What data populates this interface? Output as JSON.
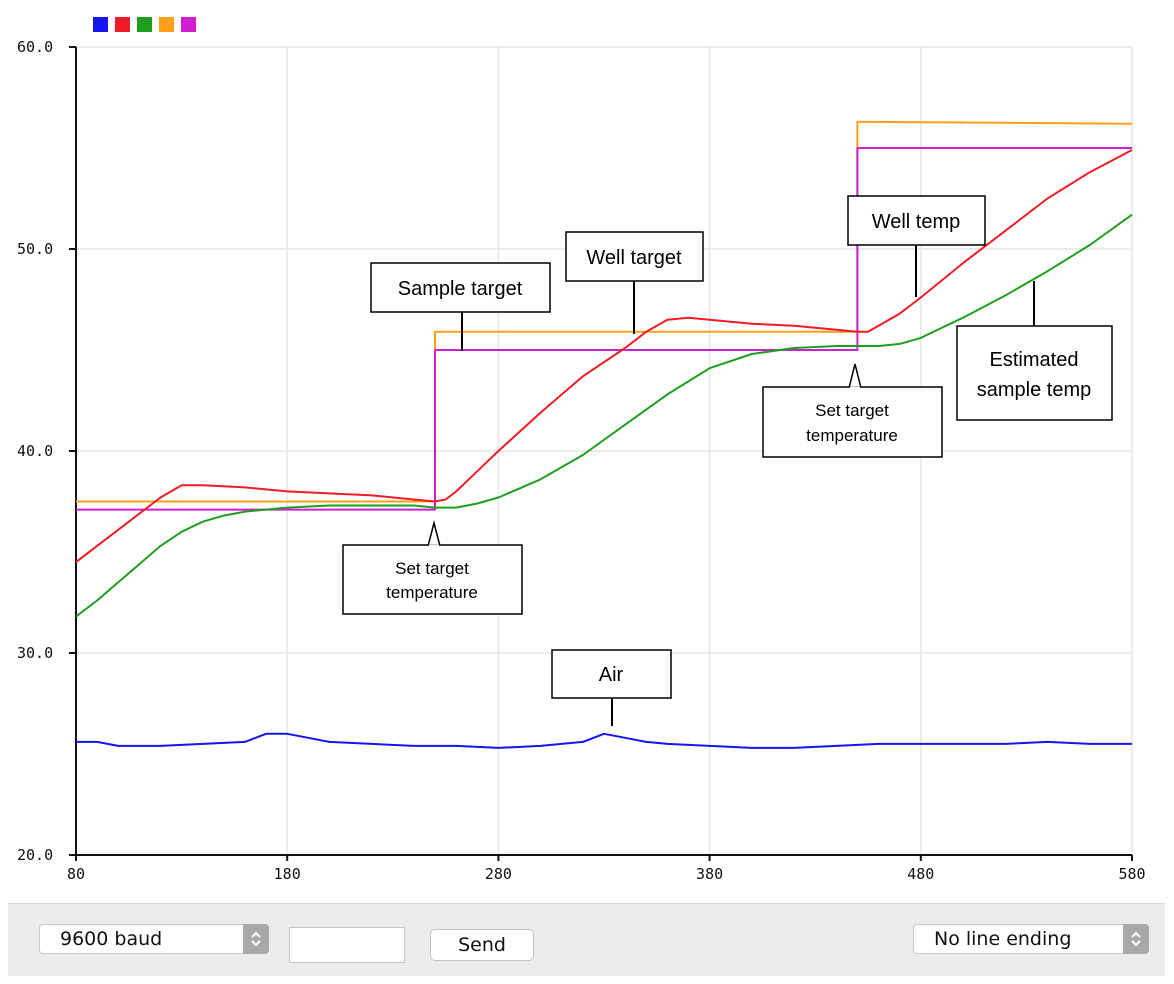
{
  "legend": {
    "swatches": [
      {
        "color": "#1515ef"
      },
      {
        "color": "#ee1c25"
      },
      {
        "color": "#1f9e1f"
      },
      {
        "color": "#ff9f1c"
      },
      {
        "color": "#d01fd0"
      }
    ]
  },
  "chart_data": {
    "type": "line",
    "xlim": [
      80,
      580
    ],
    "ylim": [
      20.0,
      60.0
    ],
    "x_ticks": [
      "80",
      "180",
      "280",
      "380",
      "480",
      "580"
    ],
    "y_ticks": [
      "20.0",
      "30.0",
      "40.0",
      "50.0",
      "60.0"
    ],
    "grid": true,
    "series": [
      {
        "color": "#1515ef",
        "x": [
          80,
          90,
          100,
          120,
          140,
          160,
          170,
          180,
          190,
          200,
          220,
          240,
          260,
          280,
          300,
          320,
          330,
          340,
          350,
          360,
          380,
          400,
          420,
          440,
          460,
          480,
          500,
          520,
          540,
          560,
          580
        ],
        "y": [
          25.6,
          25.6,
          25.4,
          25.4,
          25.5,
          25.6,
          26.0,
          26.0,
          25.8,
          25.6,
          25.5,
          25.4,
          25.4,
          25.3,
          25.4,
          25.6,
          26.0,
          25.8,
          25.6,
          25.5,
          25.4,
          25.3,
          25.3,
          25.4,
          25.5,
          25.5,
          25.5,
          25.5,
          25.6,
          25.5,
          25.5
        ]
      },
      {
        "color": "#ee1c25",
        "x": [
          80,
          90,
          100,
          110,
          120,
          130,
          140,
          160,
          180,
          200,
          220,
          240,
          250,
          255,
          260,
          270,
          280,
          300,
          320,
          340,
          350,
          360,
          370,
          380,
          390,
          400,
          420,
          440,
          450,
          455,
          460,
          470,
          480,
          500,
          520,
          540,
          560,
          580
        ],
        "y": [
          34.5,
          35.3,
          36.1,
          36.9,
          37.7,
          38.3,
          38.3,
          38.2,
          38.0,
          37.9,
          37.8,
          37.6,
          37.5,
          37.6,
          38.0,
          39.0,
          40.0,
          41.9,
          43.7,
          45.1,
          45.9,
          46.5,
          46.6,
          46.5,
          46.4,
          46.3,
          46.2,
          46.0,
          45.9,
          45.9,
          46.2,
          46.8,
          47.6,
          49.3,
          50.9,
          52.5,
          53.8,
          54.9
        ]
      },
      {
        "color": "#1f9e1f",
        "x": [
          80,
          90,
          100,
          110,
          120,
          130,
          140,
          150,
          160,
          170,
          180,
          200,
          220,
          240,
          250,
          260,
          270,
          280,
          300,
          320,
          340,
          360,
          380,
          400,
          420,
          440,
          450,
          460,
          470,
          480,
          500,
          520,
          540,
          560,
          580
        ],
        "y": [
          31.8,
          32.6,
          33.5,
          34.4,
          35.3,
          36.0,
          36.5,
          36.8,
          37.0,
          37.1,
          37.2,
          37.3,
          37.3,
          37.3,
          37.2,
          37.2,
          37.4,
          37.7,
          38.6,
          39.8,
          41.3,
          42.8,
          44.1,
          44.8,
          45.1,
          45.2,
          45.2,
          45.2,
          45.3,
          45.6,
          46.6,
          47.7,
          48.9,
          50.2,
          51.7
        ]
      },
      {
        "color": "#ff9f1c",
        "x": [
          80,
          250,
          250,
          450,
          450,
          580
        ],
        "y": [
          37.5,
          37.5,
          45.9,
          45.9,
          56.3,
          56.2
        ]
      },
      {
        "color": "#d01fd0",
        "x": [
          80,
          250,
          250,
          450,
          450,
          580
        ],
        "y": [
          37.1,
          37.1,
          45.0,
          45.0,
          55.0,
          55.0
        ]
      }
    ],
    "annotations": {
      "sample_target": "Sample target",
      "well_target": "Well target",
      "well_temp": "Well temp",
      "estimated_sample_temp_1": "Estimated",
      "estimated_sample_temp_2": "sample temp",
      "set_target_a_1": "Set target",
      "set_target_a_2": "temperature",
      "set_target_b_1": "Set target",
      "set_target_b_2": "temperature",
      "air": "Air"
    }
  },
  "toolbar": {
    "baud_value": "9600 baud",
    "input_value": "",
    "send_label": "Send",
    "line_ending_value": "No line ending"
  }
}
